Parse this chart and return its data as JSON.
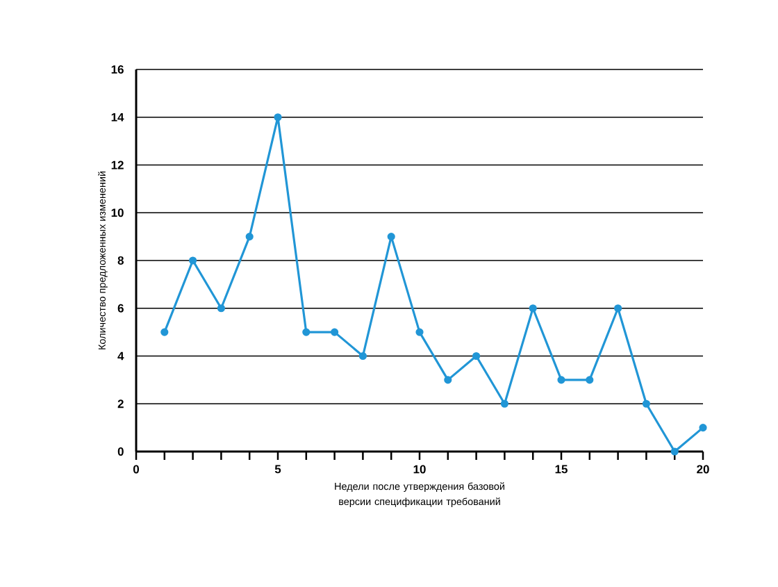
{
  "chart_data": {
    "type": "line",
    "xlabel": "Недели после утверждения базовой версии спецификации требований",
    "ylabel": "Количество предложенных изменений",
    "x": [
      1,
      2,
      3,
      4,
      5,
      6,
      7,
      8,
      9,
      10,
      11,
      12,
      13,
      14,
      15,
      16,
      17,
      18,
      19,
      20
    ],
    "series": [
      {
        "color": "#2196d6",
        "values": [
          5,
          8,
          6,
          9,
          14,
          5,
          5,
          4,
          9,
          5,
          3,
          4,
          2,
          6,
          3,
          3,
          6,
          2,
          0,
          1
        ]
      }
    ],
    "xlim": [
      0,
      20
    ],
    "ylim": [
      0,
      16
    ],
    "xticks": [
      0,
      {
        "value": 1,
        "label": null
      },
      {
        "value": 2,
        "label": null
      },
      {
        "value": 3,
        "label": null
      },
      {
        "value": 4,
        "label": null
      },
      5,
      {
        "value": 6,
        "label": null
      },
      {
        "value": 7,
        "label": null
      },
      {
        "value": 8,
        "label": null
      },
      {
        "value": 9,
        "label": null
      },
      10,
      {
        "value": 11,
        "label": null
      },
      {
        "value": 12,
        "label": null
      },
      {
        "value": 13,
        "label": null
      },
      {
        "value": 14,
        "label": null
      },
      15,
      {
        "value": 16,
        "label": null
      },
      {
        "value": 17,
        "label": null
      },
      {
        "value": 18,
        "label": null
      },
      {
        "value": 19,
        "label": null
      },
      20
    ],
    "yticks": [
      0,
      2,
      4,
      6,
      8,
      10,
      12,
      14,
      16
    ],
    "grid": "y",
    "marker": "circle",
    "line_style": "solid"
  }
}
